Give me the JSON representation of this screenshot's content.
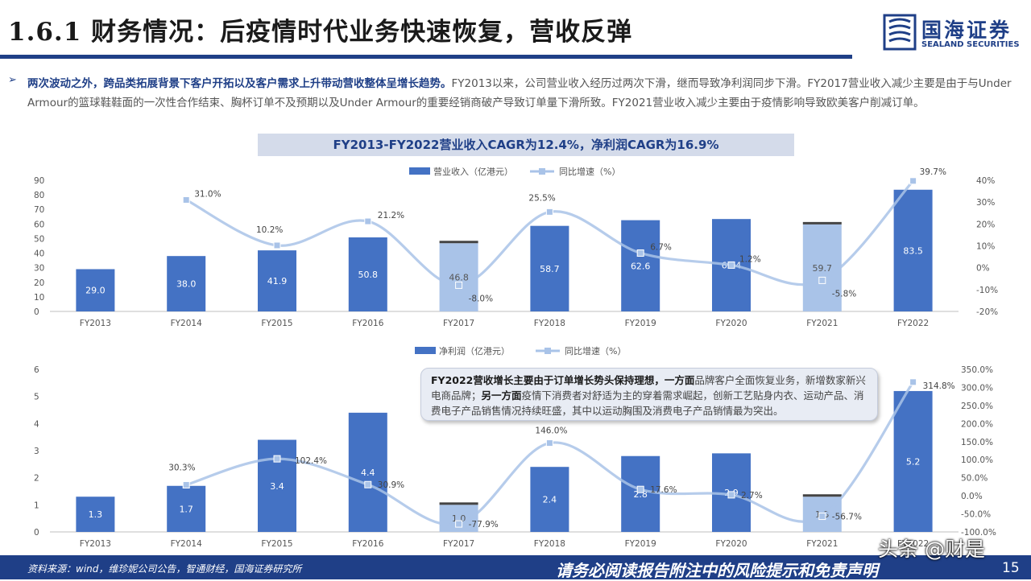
{
  "header": {
    "title": "1.6.1 财务情况：后疫情时代业务快速恢复，营收反弹",
    "logo_cn": "国海证券",
    "logo_en": "SEALAND SECURITIES"
  },
  "summary": {
    "lead": "两次波动之外，跨品类拓展背景下客户开拓以及客户需求上升带动营收整体呈增长趋势。",
    "text": "FY2013以来，公司营业收入经历过两次下滑，继而导致净利润同步下滑。FY2017营业收入减少主要是由于与Under Armour的篮球鞋鞋面的一次性合作结束、胸杯订单不及预期以及Under Armour的重要经销商破产导致订单量下滑所致。FY2021营业收入减少主要由于疫情影响导致欧美客户削减订单。"
  },
  "banner": "FY2013-FY2022营业收入CAGR为12.4%，净利润CAGR为16.9%",
  "callout": {
    "p1": "FY2022营收增长主要由于订单增长势头保持理想，一方面",
    "p2": "品牌客户全面恢复业务，新增数家新兴电商品牌；",
    "p3": "另一方面",
    "p4": "疫情下消费者对舒适为主的穿着需求崛起，创新工艺贴身内衣、运动产品、消费电子产品销售情况持续旺盛，其中以运动胸围及消费电子产品销情最为突出。"
  },
  "footer": {
    "source": "资料来源：wind，维珍妮公司公告，智通财经，国海证券研究所",
    "disclaimer": "请务必阅读报告附注中的风险提示和免责声明",
    "page": "15",
    "watermark": "头条 @财是"
  },
  "colors": {
    "bar": "#4472c4",
    "bar_highlight": "#a9c3e8",
    "line": "#a9c3e8",
    "brand": "#1f3f87"
  },
  "chart_data": [
    {
      "type": "bar",
      "categories": [
        "FY2013",
        "FY2014",
        "FY2015",
        "FY2016",
        "FY2017",
        "FY2018",
        "FY2019",
        "FY2020",
        "FY2021",
        "FY2022"
      ],
      "series": [
        {
          "name": "营业收入（亿港元）",
          "type": "bar",
          "axis": "left",
          "values": [
            29.0,
            38.0,
            41.9,
            50.8,
            46.8,
            58.7,
            62.6,
            63.4,
            59.7,
            83.5
          ],
          "labels": [
            "29.0",
            "38.0",
            "41.9",
            "50.8",
            "46.8",
            "58.7",
            "62.6",
            "63.4",
            "59.7",
            "83.5"
          ]
        },
        {
          "name": "同比增速（%）",
          "type": "line",
          "axis": "right",
          "values": [
            null,
            31.0,
            10.2,
            21.2,
            -8.0,
            25.5,
            6.7,
            1.2,
            -5.8,
            39.7
          ],
          "labels": [
            "",
            "31.0%",
            "10.2%",
            "21.2%",
            "-8.0%",
            "25.5%",
            "6.7%",
            "1.2%",
            "-5.8%",
            "39.7%"
          ]
        }
      ],
      "highlight_bars": [
        4,
        8
      ],
      "y_left": {
        "min": 0,
        "max": 90,
        "ticks": [
          "0",
          "10",
          "20",
          "30",
          "40",
          "50",
          "60",
          "70",
          "80",
          "90"
        ]
      },
      "y_right": {
        "min": -20,
        "max": 40,
        "ticks": [
          "-20%",
          "-10%",
          "0%",
          "10%",
          "20%",
          "30%",
          "40%"
        ]
      },
      "legend": "top-center"
    },
    {
      "type": "bar",
      "categories": [
        "FY2013",
        "FY2014",
        "FY2015",
        "FY2016",
        "FY2017",
        "FY2018",
        "FY2019",
        "FY2020",
        "FY2021",
        "FY2022"
      ],
      "series": [
        {
          "name": "净利润（亿港元）",
          "type": "bar",
          "axis": "left",
          "values": [
            1.3,
            1.7,
            3.4,
            4.4,
            1.0,
            2.4,
            2.8,
            2.9,
            1.3,
            5.2
          ],
          "labels": [
            "1.3",
            "1.7",
            "3.4",
            "4.4",
            "1.0",
            "2.4",
            "2.8",
            "2.9",
            "1.3",
            "5.2"
          ]
        },
        {
          "name": "同比增速（%）",
          "type": "line",
          "axis": "right",
          "values": [
            null,
            30.3,
            102.4,
            30.9,
            -77.9,
            146.0,
            17.6,
            2.7,
            -56.7,
            314.8
          ],
          "labels": [
            "",
            "30.3%",
            "102.4%",
            "30.9%",
            "-77.9%",
            "146.0%",
            "17.6%",
            "2.7%",
            "-56.7%",
            "314.8%"
          ]
        }
      ],
      "highlight_bars": [
        4,
        8
      ],
      "y_left": {
        "min": 0,
        "max": 6,
        "ticks": [
          "0",
          "1",
          "2",
          "3",
          "4",
          "5",
          "6"
        ]
      },
      "y_right": {
        "min": -100,
        "max": 350,
        "ticks": [
          "-100.0%",
          "-50.0%",
          "0.0%",
          "50.0%",
          "100.0%",
          "150.0%",
          "200.0%",
          "250.0%",
          "300.0%",
          "350.0%"
        ]
      },
      "legend": "top-center"
    }
  ]
}
